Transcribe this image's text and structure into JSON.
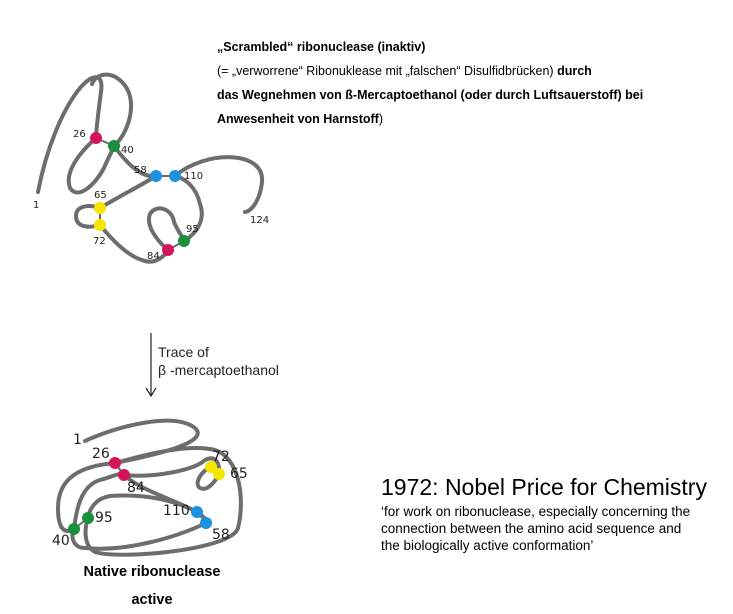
{
  "heading": {
    "line1": "„Scrambled“ ribonuclease (inaktiv)",
    "line2_normal": "(= „verworrene“ Ribonuklease mit „falschen“ Disulfidbrücken) ",
    "line2_bold": "durch",
    "line3": "das Wegnehmen von ß-Mercaptoethanol (oder durch Luftsauerstoff) bei",
    "line4_bold": "Anwesenheit von Harnstoff",
    "line4_normal": ")"
  },
  "scrambled_labels": {
    "start": "1",
    "end": "124",
    "c26": "26",
    "c40": "40",
    "c58": "58",
    "c110": "110",
    "c65": "65",
    "c72": "72",
    "c95": "95",
    "c84": "84"
  },
  "arrow_label": {
    "line1": "Trace of",
    "line2": "β -mercaptoethanol"
  },
  "native_labels": {
    "start": "1",
    "c26": "26",
    "c84": "84",
    "c72": "72",
    "c65": "65",
    "c95": "95",
    "c40": "40",
    "c110": "110",
    "c58": "58"
  },
  "native_caption": {
    "line1": "Native ribonuclease",
    "line2": "active"
  },
  "nobel": {
    "title": "1972: Nobel Price for Chemistry",
    "quote_line1": "‘for work on ribonuclease, especially concerning the",
    "quote_line2": "connection between the amino acid sequence and",
    "quote_line3": "the biologically active conformation’"
  },
  "colors": {
    "chain": "#6d6d6d",
    "magenta": "#d4145a",
    "green": "#1a8f3c",
    "blue": "#1e90e0",
    "yellow": "#f5e600"
  }
}
